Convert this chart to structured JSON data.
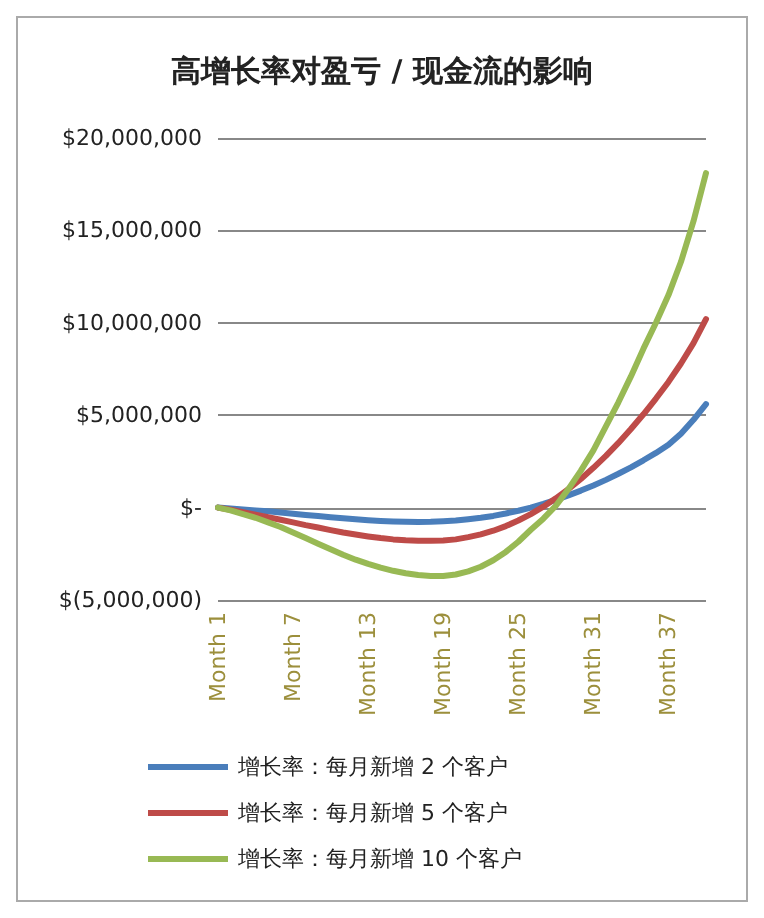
{
  "chart_data": {
    "type": "line",
    "title": "高增长率对盈亏 / 现金流的影响",
    "categories": [
      "Month 1",
      null,
      null,
      null,
      null,
      null,
      "Month 7",
      null,
      null,
      null,
      null,
      null,
      "Month 13",
      null,
      null,
      null,
      null,
      null,
      "Month 19",
      null,
      null,
      null,
      null,
      null,
      "Month 25",
      null,
      null,
      null,
      null,
      null,
      "Month 31",
      null,
      null,
      null,
      null,
      null,
      "Month 37",
      null,
      null,
      null
    ],
    "series": [
      {
        "name": "增长率：每月新增 2 个客户",
        "color": "#4a7ebb",
        "values": [
          0,
          -50000,
          -100000,
          -150000,
          -200000,
          -270000,
          -330000,
          -400000,
          -460000,
          -520000,
          -580000,
          -630000,
          -680000,
          -720000,
          -750000,
          -770000,
          -780000,
          -770000,
          -740000,
          -700000,
          -630000,
          -550000,
          -450000,
          -320000,
          -170000,
          0,
          200000,
          420000,
          660000,
          920000,
          1200000,
          1500000,
          1830000,
          2180000,
          2560000,
          2960000,
          3400000,
          4000000,
          4750000,
          5600000
        ]
      },
      {
        "name": "增长率：每月新增 5 个客户",
        "color": "#be4b48",
        "values": [
          0,
          -120000,
          -250000,
          -380000,
          -520000,
          -660000,
          -800000,
          -950000,
          -1080000,
          -1220000,
          -1350000,
          -1460000,
          -1560000,
          -1650000,
          -1720000,
          -1770000,
          -1800000,
          -1800000,
          -1780000,
          -1720000,
          -1600000,
          -1450000,
          -1250000,
          -1000000,
          -700000,
          -350000,
          50000,
          500000,
          1000000,
          1550000,
          2150000,
          2800000,
          3500000,
          4250000,
          5050000,
          5900000,
          6800000,
          7800000,
          8900000,
          10200000
        ]
      },
      {
        "name": "增长率：每月新增 10 个客户",
        "color": "#98b954",
        "values": [
          0,
          -150000,
          -350000,
          -550000,
          -800000,
          -1050000,
          -1350000,
          -1650000,
          -1950000,
          -2250000,
          -2550000,
          -2820000,
          -3050000,
          -3250000,
          -3420000,
          -3550000,
          -3650000,
          -3700000,
          -3700000,
          -3620000,
          -3450000,
          -3200000,
          -2850000,
          -2400000,
          -1850000,
          -1200000,
          -600000,
          100000,
          1000000,
          2000000,
          3100000,
          4400000,
          5700000,
          7100000,
          8600000,
          10000000,
          11500000,
          13300000,
          15500000,
          18100000
        ]
      }
    ],
    "ylim": [
      -5000000,
      20000000
    ],
    "yticks": [
      {
        "value": -5000000,
        "label": "$(5,000,000)"
      },
      {
        "value": 0,
        "label": "$-"
      },
      {
        "value": 5000000,
        "label": "$5,000,000"
      },
      {
        "value": 10000000,
        "label": "$10,000,000"
      },
      {
        "value": 15000000,
        "label": "$15,000,000"
      },
      {
        "value": 20000000,
        "label": "$20,000,000"
      }
    ],
    "grid": "y",
    "legend": "bottom",
    "marker": "none",
    "line_style": "solid"
  }
}
